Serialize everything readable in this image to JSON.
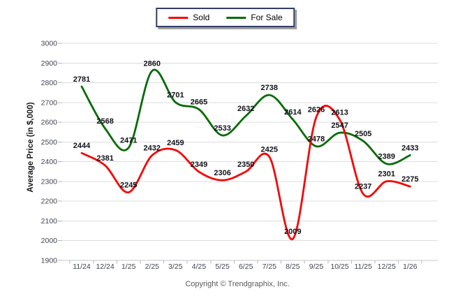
{
  "chart_data": {
    "type": "line",
    "title": "",
    "xlabel": "",
    "ylabel": "Average Price (in $,000)",
    "categories": [
      "11/24",
      "12/24",
      "1/25",
      "2/25",
      "3/25",
      "4/25",
      "5/25",
      "6/25",
      "7/25",
      "8/25",
      "9/25",
      "10/25",
      "11/25",
      "12/25",
      "1/26"
    ],
    "series": [
      {
        "name": "Sold",
        "color": "#f70404",
        "values": [
          2444,
          2381,
          2245,
          2432,
          2459,
          2349,
          2306,
          2350,
          2425,
          2009,
          2626,
          2613,
          2237,
          2301,
          2275
        ]
      },
      {
        "name": "For Sale",
        "color": "#066b06",
        "values": [
          2781,
          2568,
          2471,
          2860,
          2701,
          2665,
          2533,
          2632,
          2738,
          2614,
          2478,
          2547,
          2505,
          2389,
          2433
        ]
      }
    ],
    "ylim": [
      1900,
      3000
    ],
    "ytick_step": 100,
    "yticks": [
      1900,
      2000,
      2100,
      2200,
      2300,
      2400,
      2500,
      2600,
      2700,
      2800,
      2900,
      3000
    ],
    "grid": true,
    "legend_position": "top-center",
    "data_labels": true
  },
  "footer": {
    "copyright": "Copyright © Trendgraphix, Inc."
  },
  "colors": {
    "background": "#ffffff",
    "gridline": "#dcdcdc",
    "axis_line": "#c6c6c6",
    "tick": "#b5b5b5",
    "tick_label": "#3f4552",
    "point_label": "#101219",
    "legend_border": "#333d66",
    "copyright_text": "#595959"
  }
}
